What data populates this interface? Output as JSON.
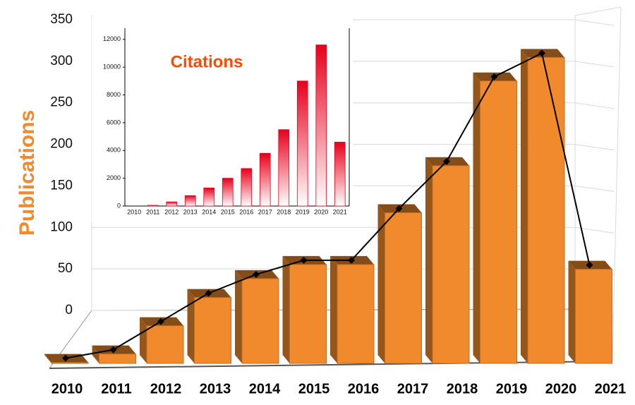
{
  "chart_data": [
    {
      "type": "bar3d",
      "y_label": "Publications",
      "categories": [
        "2010",
        "2011",
        "2012",
        "2013",
        "2014",
        "2015",
        "2016",
        "2017",
        "2018",
        "2019",
        "2020",
        "2021"
      ],
      "values": [
        1,
        10,
        40,
        70,
        90,
        105,
        105,
        160,
        210,
        300,
        325,
        100
      ],
      "color": "#f08a2c",
      "line_color": "#000000",
      "ylim": [
        0,
        350
      ],
      "yticks": [
        0,
        50,
        100,
        150,
        200,
        250,
        300,
        350
      ],
      "grid": true
    },
    {
      "type": "bar",
      "title": "Citations",
      "categories": [
        "2010",
        "2011",
        "2012",
        "2013",
        "2014",
        "2015",
        "2016",
        "2017",
        "2018",
        "2019",
        "2020",
        "2021"
      ],
      "values": [
        0,
        50,
        300,
        750,
        1300,
        2000,
        2700,
        3800,
        5500,
        9000,
        11600,
        4600
      ],
      "color": "#e8001c",
      "ylim": [
        0,
        12800
      ],
      "yticks": [
        0,
        2000,
        4000,
        6000,
        8000,
        10000,
        12000
      ]
    }
  ]
}
